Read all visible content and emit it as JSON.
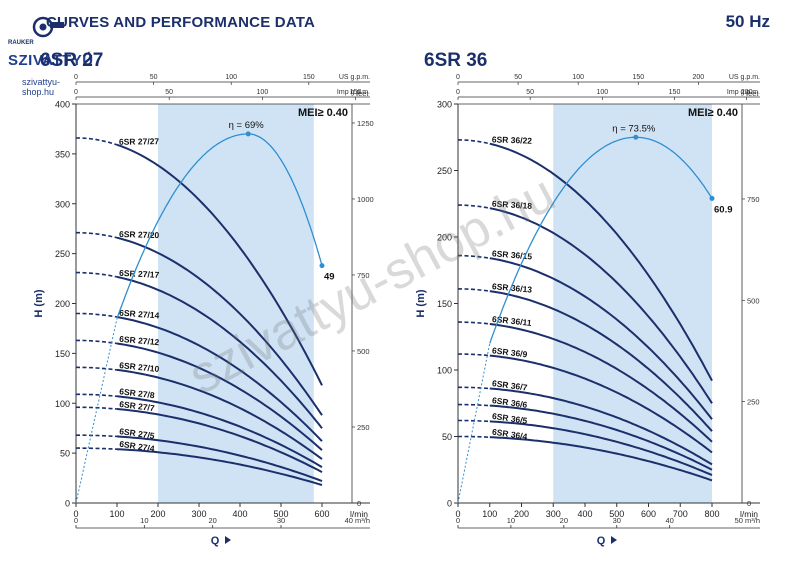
{
  "header": {
    "title": "CURVES AND PERFORMANCE DATA",
    "frequency": "50 Hz"
  },
  "logo": {
    "brand_top": "RAUKER",
    "brand": "SZIVATTYÚ",
    "url": "szivattyu-shop.hu"
  },
  "watermark": "szivattyu-shop.hu",
  "colors": {
    "curve": "#1b2f6b",
    "eff_curve": "#2f8fd1",
    "band": "#cfe3f5",
    "axis": "#333333",
    "text": "#1b2f6b"
  },
  "chart_data": [
    {
      "type": "line",
      "title": "6SR 27",
      "mei_label": "MEI≥ 0.40",
      "ylabel": "H (m)",
      "xlabel": "Q",
      "x_unit": "l/min",
      "x_unit_top_us": "US g.p.m.",
      "x_unit_top_imp": "Imp g.p.m.",
      "x_unit_m3h": "m³/h",
      "x_unit_m3h_value": "40",
      "y_unit_right": "feet",
      "xlim": [
        0,
        600
      ],
      "ylim": [
        0,
        400
      ],
      "xticks": [
        0,
        100,
        200,
        300,
        400,
        500,
        600
      ],
      "yticks": [
        0,
        50,
        100,
        150,
        200,
        250,
        300,
        350,
        400
      ],
      "us_gpm_ticks": [
        0,
        50,
        100,
        150
      ],
      "imp_gpm_ticks": [
        0,
        50,
        100,
        150
      ],
      "m3h_ticks": [
        0,
        10,
        20,
        30
      ],
      "feet_ticks": [
        0,
        250,
        500,
        750,
        1000,
        1250
      ],
      "band": [
        200,
        580
      ],
      "curve_start": 100,
      "curve_end": 600,
      "series": [
        {
          "name": "6SR 27/27",
          "shutoff": 366,
          "end": 118
        },
        {
          "name": "6SR 27/20",
          "shutoff": 271,
          "end": 88
        },
        {
          "name": "6SR 27/17",
          "shutoff": 231,
          "end": 75
        },
        {
          "name": "6SR 27/14",
          "shutoff": 190,
          "end": 62
        },
        {
          "name": "6SR 27/12",
          "shutoff": 163,
          "end": 53
        },
        {
          "name": "6SR 27/10",
          "shutoff": 136,
          "end": 44
        },
        {
          "name": "6SR 27/8",
          "shutoff": 109,
          "end": 36
        },
        {
          "name": "6SR 27/7",
          "shutoff": 96,
          "end": 31
        },
        {
          "name": "6SR 27/5",
          "shutoff": 68,
          "end": 22
        },
        {
          "name": "6SR 27/4",
          "shutoff": 55,
          "end": 18
        }
      ],
      "efficiency": {
        "peak_label": "η = 69%",
        "end_label": "49",
        "peak_x": 420,
        "peak_y": 370,
        "end_x": 600,
        "end_y": 238,
        "start_x": 100,
        "start_y": 185
      }
    },
    {
      "type": "line",
      "title": "6SR 36",
      "mei_label": "MEI≥ 0.40",
      "ylabel": "H (m)",
      "xlabel": "Q",
      "x_unit": "l/min",
      "x_unit_top_us": "US g.p.m.",
      "x_unit_top_imp": "Imp g.p.m.",
      "x_unit_m3h": "m³/h",
      "x_unit_m3h_value": "50",
      "y_unit_right": "feet",
      "xlim": [
        0,
        800
      ],
      "ylim": [
        0,
        300
      ],
      "xticks": [
        0,
        100,
        200,
        300,
        400,
        500,
        600,
        700,
        800
      ],
      "yticks": [
        0,
        50,
        100,
        150,
        200,
        250,
        300
      ],
      "us_gpm_ticks": [
        0,
        50,
        100,
        150,
        200
      ],
      "imp_gpm_ticks": [
        0,
        50,
        100,
        150,
        200
      ],
      "m3h_ticks": [
        0,
        10,
        20,
        30,
        40
      ],
      "feet_ticks": [
        0,
        250,
        500,
        750
      ],
      "band": [
        300,
        800
      ],
      "curve_start": 100,
      "curve_end": 800,
      "series": [
        {
          "name": "6SR 36/22",
          "shutoff": 273,
          "end": 92
        },
        {
          "name": "6SR 36/18",
          "shutoff": 224,
          "end": 75
        },
        {
          "name": "6SR 36/15",
          "shutoff": 186,
          "end": 63
        },
        {
          "name": "6SR 36/13",
          "shutoff": 161,
          "end": 54
        },
        {
          "name": "6SR 36/11",
          "shutoff": 136,
          "end": 46
        },
        {
          "name": "6SR 36/9",
          "shutoff": 112,
          "end": 38
        },
        {
          "name": "6SR 36/7",
          "shutoff": 87,
          "end": 29
        },
        {
          "name": "6SR 36/6",
          "shutoff": 74,
          "end": 25
        },
        {
          "name": "6SR 36/5",
          "shutoff": 62,
          "end": 21
        },
        {
          "name": "6SR 36/4",
          "shutoff": 50,
          "end": 17
        }
      ],
      "efficiency": {
        "peak_label": "η = 73.5%",
        "end_label": "60.9",
        "peak_x": 560,
        "peak_y": 275,
        "end_x": 800,
        "end_y": 229,
        "start_x": 100,
        "start_y": 120
      }
    }
  ]
}
